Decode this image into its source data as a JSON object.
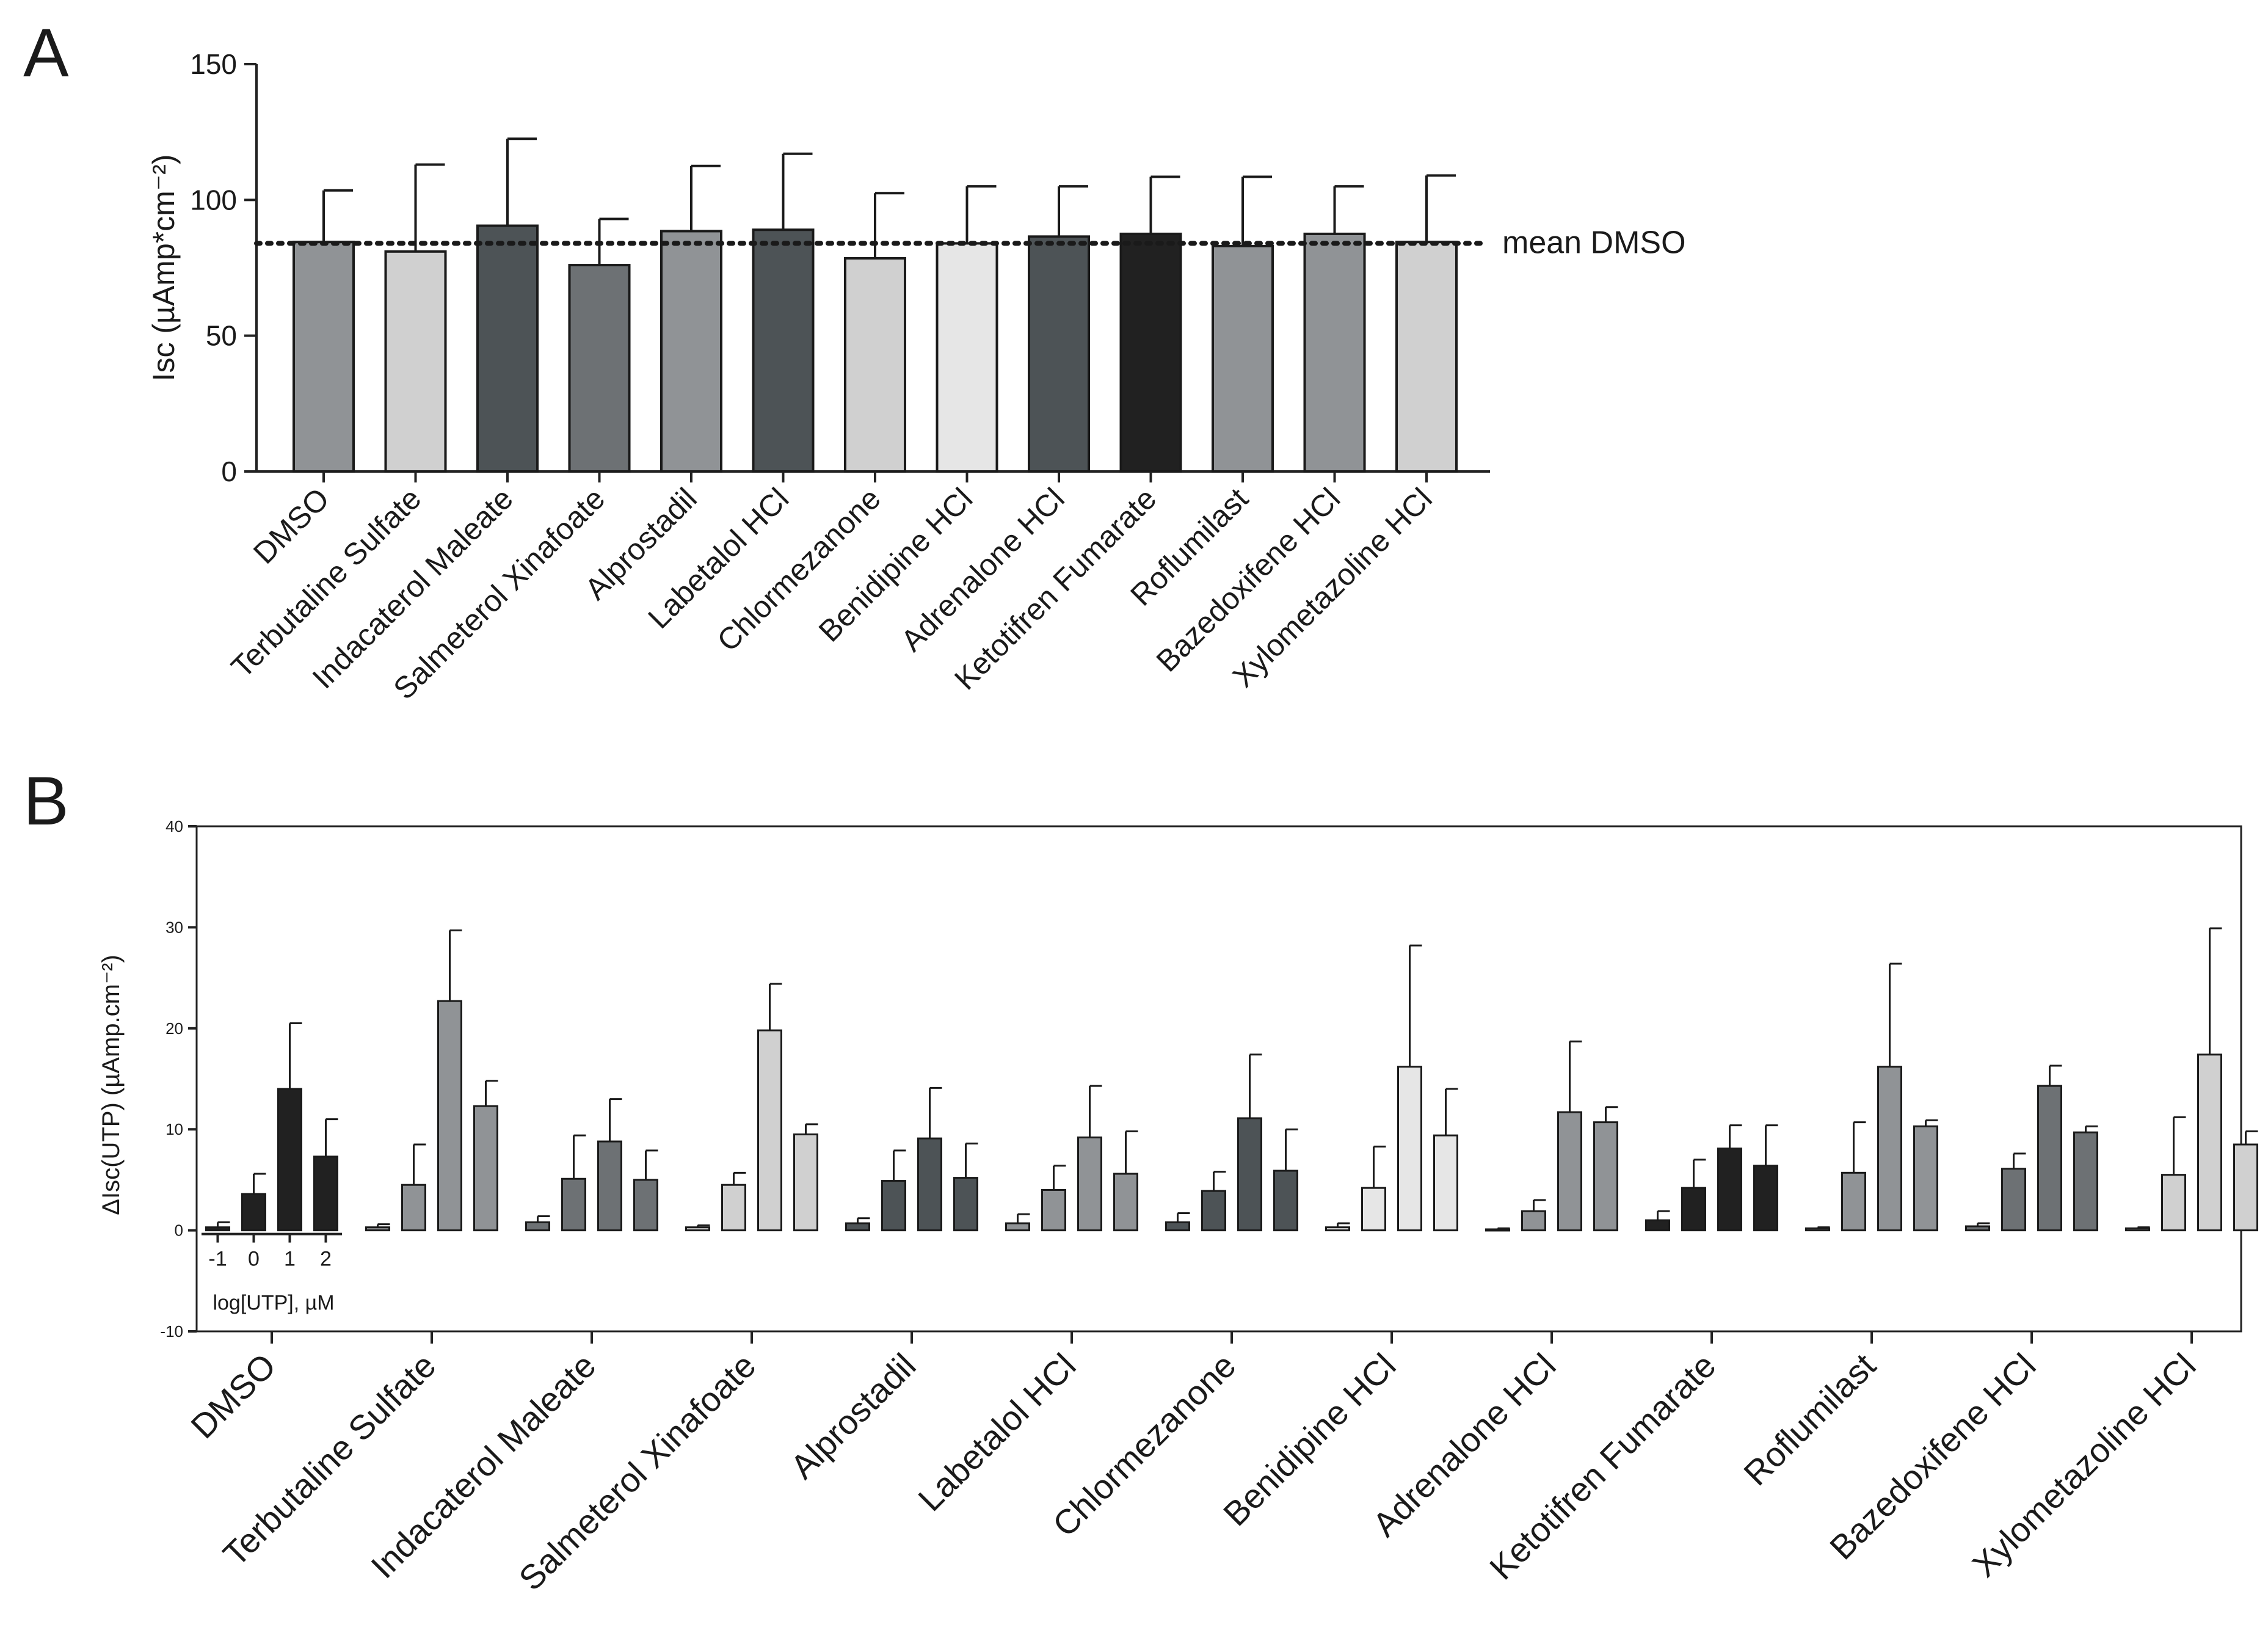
{
  "panels": {
    "a": {
      "letter": "A"
    },
    "b": {
      "letter": "B"
    }
  },
  "colors": {
    "mid_gray": "#909396",
    "light_gray": "#d0d0d0",
    "dark_gray": "#4d5356",
    "slate_gray": "#6d7174",
    "lightest_gray": "#e6e6e6",
    "black": "#212121"
  },
  "chart_data": [
    {
      "type": "bar",
      "panel": "A",
      "ylabel": "Isc (µAmp*cm⁻²)",
      "ylim": [
        0,
        150
      ],
      "yticks": [
        "0",
        "50",
        "100",
        "150"
      ],
      "categories": [
        "DMSO",
        "Terbutaline Sulfate",
        "Indacaterol Maleate",
        "Salmeterol Xinafoate",
        "Alprostadil",
        "Labetalol HCl",
        "Chlormezanone",
        "Benidipine HCl",
        "Adrenalone HCl",
        "Ketotifren Fumarate",
        "Roflumilast",
        "Bazedoxifene HCl",
        "Xylometazoline HCl"
      ],
      "values": [
        84.5,
        81,
        90.5,
        76,
        88.5,
        89,
        78.5,
        84,
        86.5,
        87.5,
        83,
        87.5,
        84.5
      ],
      "errors": [
        19,
        32,
        32,
        17,
        24,
        28,
        24,
        21,
        18.5,
        21,
        25.5,
        17.5,
        24.5
      ],
      "bar_colors": [
        "#909396",
        "#d0d0d0",
        "#4d5356",
        "#6d7174",
        "#909396",
        "#4d5356",
        "#d0d0d0",
        "#e6e6e6",
        "#4d5356",
        "#212121",
        "#909396",
        "#909396",
        "#d0d0d0"
      ],
      "reference_line": {
        "value": 84,
        "label": "mean DMSO",
        "style": "dotted"
      }
    },
    {
      "type": "bar",
      "panel": "B",
      "ylabel": "ΔIsc(UTP) (µAmp.cm⁻²)",
      "ylim": [
        -10,
        40
      ],
      "yticks": [
        "-10",
        "0",
        "10",
        "20",
        "30",
        "40"
      ],
      "categories": [
        "DMSO",
        "Terbutaline Sulfate",
        "Indacaterol Maleate",
        "Salmeterol Xinafoate",
        "Alprostadil",
        "Labetalol HCl",
        "Chlormezanone",
        "Benidipine HCl",
        "Adrenalone HCl",
        "Ketotifren Fumarate",
        "Roflumilast",
        "Bazedoxifene HCl",
        "Xylometazoline HCl"
      ],
      "dose_levels": [
        "-1",
        "0",
        "1",
        "2"
      ],
      "dose_axis_label": "log[UTP], µM",
      "groups": [
        {
          "name": "DMSO",
          "color": "#212121",
          "values": [
            0.3,
            3.6,
            14,
            7.3
          ],
          "errors": [
            0.5,
            2,
            6.5,
            3.7
          ]
        },
        {
          "name": "Terbutaline Sulfate",
          "color": "#909396",
          "values": [
            0.3,
            4.5,
            22.7,
            12.3
          ],
          "errors": [
            0.3,
            4,
            7,
            2.5
          ]
        },
        {
          "name": "Indacaterol Maleate",
          "color": "#6d7174",
          "values": [
            0.8,
            5.1,
            8.8,
            5
          ],
          "errors": [
            0.6,
            4.3,
            4.2,
            2.9
          ]
        },
        {
          "name": "Salmeterol Xinafoate",
          "color": "#d0d0d0",
          "values": [
            0.3,
            4.5,
            19.8,
            9.5
          ],
          "errors": [
            0.2,
            1.2,
            4.6,
            1
          ]
        },
        {
          "name": "Alprostadil",
          "color": "#4d5356",
          "values": [
            0.7,
            4.9,
            9.1,
            5.2
          ],
          "errors": [
            0.5,
            3,
            5,
            3.4
          ]
        },
        {
          "name": "Labetalol HCl",
          "color": "#909396",
          "values": [
            0.7,
            4,
            9.2,
            5.6
          ],
          "errors": [
            0.9,
            2.4,
            5.1,
            4.2
          ]
        },
        {
          "name": "Chlormezanone",
          "color": "#4d5356",
          "values": [
            0.8,
            3.9,
            11.1,
            5.9
          ],
          "errors": [
            0.9,
            1.9,
            6.3,
            4.1
          ]
        },
        {
          "name": "Benidipine HCl",
          "color": "#e6e6e6",
          "values": [
            0.3,
            4.2,
            16.2,
            9.4
          ],
          "errors": [
            0.4,
            4.1,
            12,
            4.6
          ]
        },
        {
          "name": "Adrenalone HCl",
          "color": "#909396",
          "values": [
            0.1,
            1.9,
            11.7,
            10.7
          ],
          "errors": [
            0.1,
            1.1,
            7,
            1.5
          ]
        },
        {
          "name": "Ketotifren Fumarate",
          "color": "#212121",
          "values": [
            1,
            4.2,
            8.1,
            6.4
          ],
          "errors": [
            0.9,
            2.8,
            2.3,
            4
          ]
        },
        {
          "name": "Roflumilast",
          "color": "#909396",
          "values": [
            0.2,
            5.7,
            16.2,
            10.3
          ],
          "errors": [
            0.1,
            5,
            10.2,
            0.6
          ]
        },
        {
          "name": "Bazedoxifene HCl",
          "color": "#6d7174",
          "values": [
            0.4,
            6.1,
            14.3,
            9.7
          ],
          "errors": [
            0.3,
            1.5,
            2,
            0.6
          ]
        },
        {
          "name": "Xylometazoline HCl",
          "color": "#d0d0d0",
          "values": [
            0.2,
            5.5,
            17.4,
            8.5
          ],
          "errors": [
            0.1,
            5.7,
            12.5,
            1.3
          ]
        }
      ]
    }
  ]
}
